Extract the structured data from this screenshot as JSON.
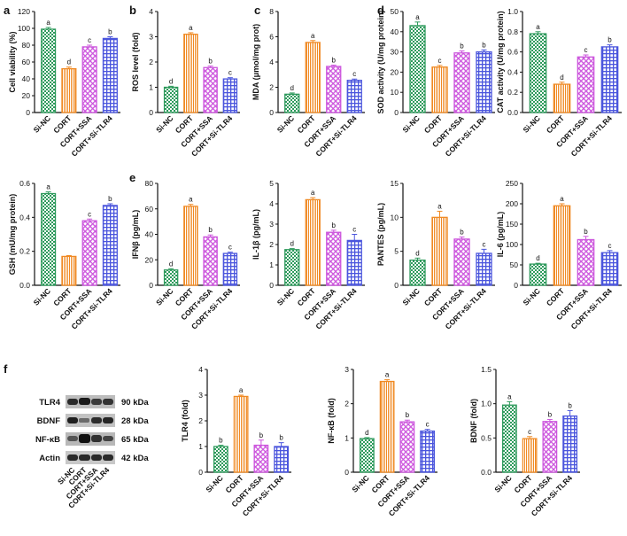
{
  "colors": {
    "green": "#2e9a5c",
    "orange": "#f08a24",
    "magenta": "#cc55dd",
    "blue": "#4a55dd",
    "axis": "#111111"
  },
  "chart_data": [
    {
      "type": "bar",
      "panel": "a",
      "ylabel": "Cell viability (%)",
      "ylim": [
        0,
        120
      ],
      "yticks": [
        0,
        20,
        40,
        60,
        80,
        100,
        120
      ],
      "categories": [
        "Si-NC",
        "CORT",
        "CORT+SSA",
        "CORT+Si-TLR4"
      ],
      "values": [
        99,
        52,
        78,
        88
      ],
      "errors": [
        2,
        2,
        2,
        2
      ],
      "letters": [
        "a",
        "d",
        "c",
        "b"
      ]
    },
    {
      "type": "bar",
      "panel": "b",
      "ylabel": "ROS level (fold)",
      "ylim": [
        0,
        4
      ],
      "yticks": [
        0,
        1,
        2,
        3,
        4
      ],
      "categories": [
        "Si-NC",
        "CORT",
        "CORT+SSA",
        "CORT+Si-TLR4"
      ],
      "values": [
        1.0,
        3.1,
        1.78,
        1.33
      ],
      "errors": [
        0.04,
        0.06,
        0.06,
        0.05
      ],
      "letters": [
        "d",
        "a",
        "b",
        "c"
      ]
    },
    {
      "type": "bar",
      "panel": "c",
      "ylabel": "MDA (μmol/mg prot)",
      "ylim": [
        0,
        8
      ],
      "yticks": [
        0,
        2,
        4,
        6,
        8
      ],
      "categories": [
        "Si-NC",
        "CORT",
        "CORT+SSA",
        "CORT+Si-TLR4"
      ],
      "values": [
        1.45,
        5.55,
        3.65,
        2.55
      ],
      "errors": [
        0.1,
        0.15,
        0.1,
        0.1
      ],
      "letters": [
        "d",
        "a",
        "b",
        "c"
      ]
    },
    {
      "type": "bar",
      "panel": "d",
      "ylabel": "SOD activity (U/mg protein)",
      "ylim": [
        0,
        50
      ],
      "yticks": [
        0,
        10,
        20,
        30,
        40,
        50
      ],
      "categories": [
        "Si-NC",
        "CORT",
        "CORT+SSA",
        "CORT+Si-TLR4"
      ],
      "values": [
        43,
        22.5,
        29.5,
        30
      ],
      "errors": [
        1.8,
        0.8,
        1,
        1
      ],
      "letters": [
        "a",
        "c",
        "b",
        "b"
      ]
    },
    {
      "type": "bar",
      "panel": "",
      "ylabel": "CAT activity (U/mg protein)",
      "ylim": [
        0,
        1.0
      ],
      "yticks": [
        0.0,
        0.2,
        0.4,
        0.6,
        0.8,
        1.0
      ],
      "categories": [
        "Si-NC",
        "CORT",
        "CORT+SSA",
        "CORT+Si-TLR4"
      ],
      "values": [
        0.78,
        0.28,
        0.55,
        0.65
      ],
      "errors": [
        0.02,
        0.02,
        0.02,
        0.02
      ],
      "letters": [
        "a",
        "d",
        "c",
        "b"
      ]
    },
    {
      "type": "bar",
      "panel": "",
      "ylabel": "GSH (mU/mg protein)",
      "ylim": [
        0,
        0.6
      ],
      "yticks": [
        0.0,
        0.2,
        0.4,
        0.6
      ],
      "categories": [
        "Si-NC",
        "CORT",
        "CORT+SSA",
        "CORT+Si-TLR4"
      ],
      "values": [
        0.54,
        0.17,
        0.38,
        0.47
      ],
      "errors": [
        0.01,
        0.005,
        0.01,
        0.01
      ],
      "letters": [
        "a",
        "",
        "c",
        "b"
      ]
    },
    {
      "type": "bar",
      "panel": "e",
      "ylabel": "IFNβ (pg/mL)",
      "ylim": [
        0,
        80
      ],
      "yticks": [
        0,
        20,
        40,
        60,
        80
      ],
      "categories": [
        "Si-NC",
        "CORT",
        "CORT+SSA",
        "CORT+Si-TLR4"
      ],
      "values": [
        12,
        62,
        38,
        25
      ],
      "errors": [
        1,
        1.5,
        1.5,
        1
      ],
      "letters": [
        "d",
        "a",
        "b",
        "c"
      ]
    },
    {
      "type": "bar",
      "panel": "",
      "ylabel": "IL-1β (pg/mL)",
      "ylim": [
        0,
        5
      ],
      "yticks": [
        0,
        1,
        2,
        3,
        4,
        5
      ],
      "categories": [
        "Si-NC",
        "CORT",
        "CORT+SSA",
        "CORT+Si-TLR4"
      ],
      "values": [
        1.75,
        4.2,
        2.6,
        2.2
      ],
      "errors": [
        0.05,
        0.1,
        0.1,
        0.3
      ],
      "letters": [
        "d",
        "a",
        "b",
        "c"
      ]
    },
    {
      "type": "bar",
      "panel": "",
      "ylabel": "PANTES (pg/mL)",
      "ylim": [
        0,
        15
      ],
      "yticks": [
        0,
        5,
        10,
        15
      ],
      "categories": [
        "Si-NC",
        "CORT",
        "CORT+SSA",
        "CORT+Si-TLR4"
      ],
      "values": [
        3.7,
        10,
        6.8,
        4.7
      ],
      "errors": [
        0.3,
        0.9,
        0.3,
        0.6
      ],
      "letters": [
        "d",
        "a",
        "b",
        "c"
      ]
    },
    {
      "type": "bar",
      "panel": "",
      "ylabel": "IL-6 (pg/mL)",
      "ylim": [
        0,
        250
      ],
      "yticks": [
        0,
        50,
        100,
        150,
        200,
        250
      ],
      "categories": [
        "Si-NC",
        "CORT",
        "CORT+SSA",
        "CORT+Si-TLR4"
      ],
      "values": [
        52,
        195,
        112,
        80
      ],
      "errors": [
        2,
        5,
        8,
        5
      ],
      "letters": [
        "d",
        "a",
        "b",
        "c"
      ]
    },
    {
      "type": "bar",
      "panel": "",
      "ylabel": "TLR4 (fold)",
      "ylim": [
        0,
        4
      ],
      "yticks": [
        0,
        1,
        2,
        3,
        4
      ],
      "categories": [
        "Si-NC",
        "CORT",
        "CORT+SSA",
        "CORT+Si-TLR4"
      ],
      "values": [
        1.0,
        2.95,
        1.05,
        1.0
      ],
      "errors": [
        0.05,
        0.05,
        0.2,
        0.15
      ],
      "letters": [
        "b",
        "a",
        "b",
        "b"
      ]
    },
    {
      "type": "bar",
      "panel": "",
      "ylabel": "NF-κB (fold)",
      "ylim": [
        0,
        3
      ],
      "yticks": [
        0,
        1,
        2,
        3
      ],
      "categories": [
        "Si-NC",
        "CORT",
        "CORT+SSA",
        "CORT+Si-TLR4"
      ],
      "values": [
        0.98,
        2.65,
        1.47,
        1.2
      ],
      "errors": [
        0.03,
        0.05,
        0.05,
        0.05
      ],
      "letters": [
        "d",
        "a",
        "b",
        "c"
      ]
    },
    {
      "type": "bar",
      "panel": "",
      "ylabel": "BDNF (fold)",
      "ylim": [
        0,
        1.5
      ],
      "yticks": [
        0.0,
        0.5,
        1.0,
        1.5
      ],
      "categories": [
        "Si-NC",
        "CORT",
        "CORT+SSA",
        "CORT+Si-TLR4"
      ],
      "values": [
        0.98,
        0.49,
        0.74,
        0.82
      ],
      "errors": [
        0.05,
        0.03,
        0.03,
        0.08
      ],
      "letters": [
        "a",
        "c",
        "b",
        "b"
      ]
    }
  ],
  "western_blot": {
    "panel": "f",
    "bands": [
      {
        "protein": "TLR4",
        "size": "90 kDa"
      },
      {
        "protein": "BDNF",
        "size": "28 kDa"
      },
      {
        "protein": "NF-κB",
        "size": "65 kDa"
      },
      {
        "protein": "Actin",
        "size": "42 kDa"
      }
    ],
    "lanes": [
      "Si-NC",
      "CORT",
      "CORT+SSA",
      "CORT+Si-TLR4"
    ]
  }
}
